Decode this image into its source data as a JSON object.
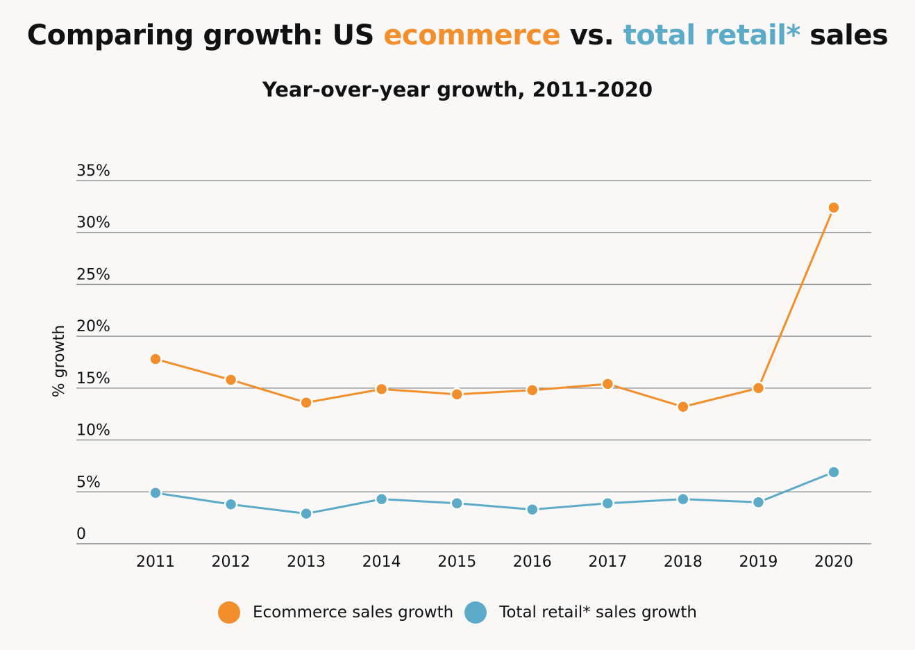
{
  "title": {
    "prefix": "Comparing growth: US ",
    "ecommerce_word": "ecommerce",
    "middle": " vs. ",
    "retail_word": "total retail*",
    "suffix": " sales"
  },
  "subtitle": "Year-over-year growth, 2011-2020",
  "colors": {
    "ecommerce": "#f28e2b",
    "retail": "#5aaac8",
    "grid": "#888888",
    "background": "#f9f8f7"
  },
  "legend": {
    "ecommerce_label": "Ecommerce sales growth",
    "retail_label": "Total retail* sales growth"
  },
  "chart_data": {
    "type": "line",
    "title": "Comparing growth: US ecommerce vs. total retail* sales",
    "subtitle": "Year-over-year growth, 2011-2020",
    "xlabel": "",
    "ylabel": "% growth",
    "x": [
      "2011",
      "2012",
      "2013",
      "2014",
      "2015",
      "2016",
      "2017",
      "2018",
      "2019",
      "2020"
    ],
    "ylim": [
      0,
      35
    ],
    "yticks": [
      0,
      5,
      10,
      15,
      20,
      25,
      30,
      35
    ],
    "ytick_labels": [
      "0",
      "5%",
      "10%",
      "15%",
      "20%",
      "25%",
      "30%",
      "35%"
    ],
    "grid": true,
    "legend_position": "bottom-center",
    "series": [
      {
        "name": "Ecommerce sales growth",
        "values": [
          17.8,
          15.8,
          13.6,
          14.9,
          14.4,
          14.8,
          15.4,
          13.2,
          15.0,
          32.4
        ]
      },
      {
        "name": "Total retail* sales growth",
        "values": [
          4.9,
          3.8,
          2.9,
          4.3,
          3.9,
          3.3,
          3.9,
          4.3,
          4.0,
          6.9
        ]
      }
    ]
  }
}
